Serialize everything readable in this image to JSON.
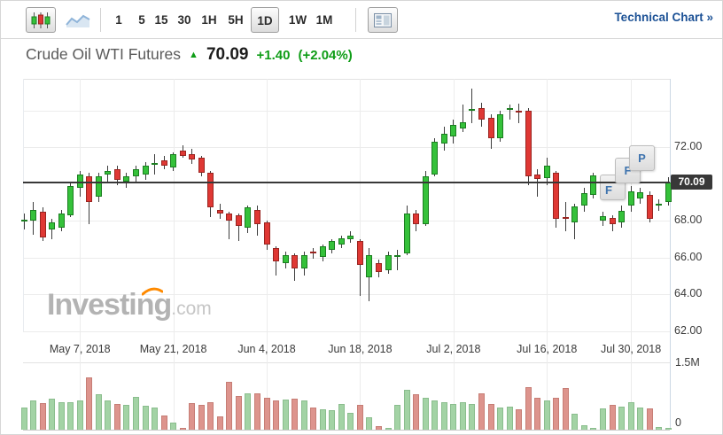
{
  "toolbar": {
    "chart_type_buttons": [
      {
        "name": "candlestick-chart",
        "selected": true
      },
      {
        "name": "line-chart",
        "selected": false
      }
    ],
    "timeframes": [
      "1",
      "5",
      "15",
      "30",
      "1H",
      "5H",
      "1D",
      "1W",
      "1M"
    ],
    "selected_timeframe": "1D",
    "technical_chart": {
      "label": "Technical Chart",
      "arrow": "»"
    }
  },
  "header": {
    "title": "Crude Oil WTI Futures",
    "up_arrow": "▲",
    "price": "70.09",
    "change": "+1.40",
    "change_pct": "(+2.04%)"
  },
  "watermark": {
    "text": "Investing",
    "suffix": ".com"
  },
  "axes": {
    "price_ticks": [
      "72.00",
      "68.00",
      "66.00",
      "64.00",
      "62.00"
    ],
    "price_tick_values": [
      72,
      68,
      66,
      64,
      62
    ],
    "current_price_label": "70.09",
    "date_ticks": [
      "May 7, 2018",
      "May 21, 2018",
      "Jun 4, 2018",
      "Jun 18, 2018",
      "Jul 2, 2018",
      "Jul 16, 2018",
      "Jul 30, 2018"
    ],
    "volume_ticks": [
      "1.5M",
      "0"
    ]
  },
  "event_flags": [
    {
      "label": "F"
    },
    {
      "label": "F"
    },
    {
      "label": "P"
    }
  ],
  "colors": {
    "candle_up": "#35c13a",
    "candle_up_border": "#1b7e20",
    "candle_down": "#df3834",
    "candle_down_border": "#992420",
    "volume_up": "#a3d3a5",
    "volume_down": "#dd948d",
    "price_line": "#383838",
    "link_blue": "#1d5296",
    "change_green": "#0f9d17",
    "flag_letter_blue": "#3f74ae",
    "watermark_orange": "#ff8a00"
  },
  "chart_data": {
    "type": "candlestick+volume",
    "title": "Crude Oil WTI Futures",
    "timeframe": "1D",
    "last_price": 70.09,
    "change": 1.4,
    "change_pct": 2.04,
    "price_axis_range": [
      61.9,
      75.7
    ],
    "price_gridlines": [
      74,
      72,
      68,
      66,
      64,
      62
    ],
    "volume_axis_range_m": [
      0,
      1.5
    ],
    "grid": true,
    "legend": "none",
    "x_tick_dates": [
      "May 7, 2018",
      "May 21, 2018",
      "Jun 4, 2018",
      "Jun 18, 2018",
      "Jul 2, 2018",
      "Jul 16, 2018",
      "Jul 30, 2018"
    ],
    "tick_indices": [
      7,
      17,
      27,
      37,
      47,
      57,
      66
    ],
    "candles_ohlcv": [
      [
        68.0,
        68.4,
        67.5,
        68.05,
        0.5
      ],
      [
        68.0,
        69.0,
        67.2,
        68.6,
        0.66
      ],
      [
        68.5,
        68.7,
        66.9,
        67.1,
        0.6
      ],
      [
        67.5,
        68.1,
        67.0,
        67.9,
        0.7
      ],
      [
        67.6,
        68.6,
        67.4,
        68.4,
        0.62
      ],
      [
        68.3,
        70.1,
        68.2,
        69.9,
        0.62
      ],
      [
        69.8,
        70.7,
        69.3,
        70.5,
        0.66
      ],
      [
        70.4,
        70.6,
        67.8,
        69.0,
        1.16
      ],
      [
        69.3,
        70.6,
        69.0,
        70.4,
        0.8
      ],
      [
        70.5,
        71.0,
        70.0,
        70.7,
        0.66
      ],
      [
        70.8,
        71.0,
        69.9,
        70.2,
        0.58
      ],
      [
        70.1,
        70.6,
        69.8,
        70.4,
        0.56
      ],
      [
        70.4,
        71.0,
        70.1,
        70.8,
        0.74
      ],
      [
        70.5,
        71.2,
        70.2,
        71.0,
        0.54
      ],
      [
        71.1,
        71.6,
        70.5,
        71.15,
        0.5
      ],
      [
        71.3,
        71.5,
        70.8,
        71.0,
        0.32
      ],
      [
        70.9,
        71.7,
        70.7,
        71.6,
        0.16
      ],
      [
        71.8,
        72.1,
        71.4,
        71.5,
        0.05
      ],
      [
        71.6,
        71.9,
        71.1,
        71.3,
        0.6
      ],
      [
        71.4,
        71.5,
        70.4,
        70.6,
        0.55
      ],
      [
        70.6,
        70.7,
        68.2,
        68.7,
        0.62
      ],
      [
        68.6,
        68.9,
        68.1,
        68.4,
        0.3
      ],
      [
        68.4,
        68.5,
        67.0,
        68.0,
        1.06
      ],
      [
        68.3,
        68.4,
        66.9,
        67.7,
        0.76
      ],
      [
        67.6,
        68.8,
        67.3,
        68.7,
        0.82
      ],
      [
        68.6,
        68.8,
        67.2,
        67.8,
        0.82
      ],
      [
        67.9,
        68.0,
        66.4,
        66.7,
        0.72
      ],
      [
        66.5,
        66.6,
        65.0,
        65.8,
        0.66
      ],
      [
        65.7,
        66.3,
        65.4,
        66.1,
        0.68
      ],
      [
        66.1,
        66.2,
        64.7,
        65.4,
        0.7
      ],
      [
        65.4,
        66.3,
        65.0,
        66.1,
        0.66
      ],
      [
        66.3,
        66.5,
        65.9,
        66.2,
        0.5
      ],
      [
        66.0,
        66.7,
        65.8,
        66.6,
        0.46
      ],
      [
        66.4,
        67.0,
        66.2,
        66.9,
        0.44
      ],
      [
        66.7,
        67.2,
        66.5,
        67.05,
        0.58
      ],
      [
        67.0,
        67.4,
        66.8,
        67.2,
        0.38
      ],
      [
        66.9,
        67.0,
        63.9,
        65.6,
        0.55
      ],
      [
        64.9,
        66.5,
        63.6,
        66.1,
        0.28
      ],
      [
        65.7,
        65.9,
        64.9,
        65.2,
        0.08
      ],
      [
        65.3,
        66.3,
        65.1,
        66.1,
        0.05
      ],
      [
        66.0,
        66.4,
        65.3,
        66.1,
        0.55
      ],
      [
        66.2,
        68.8,
        66.1,
        68.4,
        0.88
      ],
      [
        68.4,
        68.6,
        67.4,
        67.8,
        0.8
      ],
      [
        67.8,
        70.7,
        67.7,
        70.4,
        0.72
      ],
      [
        70.5,
        72.5,
        70.4,
        72.3,
        0.66
      ],
      [
        72.2,
        73.1,
        71.8,
        72.7,
        0.62
      ],
      [
        72.6,
        73.5,
        72.2,
        73.2,
        0.58
      ],
      [
        73.0,
        74.3,
        72.8,
        73.35,
        0.62
      ],
      [
        73.95,
        75.2,
        73.3,
        74.05,
        0.58
      ],
      [
        74.1,
        74.4,
        73.1,
        73.5,
        0.82
      ],
      [
        73.6,
        73.8,
        71.9,
        72.5,
        0.58
      ],
      [
        72.5,
        74.0,
        72.3,
        73.8,
        0.5
      ],
      [
        74.0,
        74.3,
        73.5,
        74.1,
        0.52
      ],
      [
        74.0,
        74.35,
        73.3,
        73.9,
        0.45
      ],
      [
        74.0,
        74.1,
        69.9,
        70.4,
        0.95
      ],
      [
        70.5,
        70.8,
        69.3,
        70.25,
        0.72
      ],
      [
        70.3,
        71.4,
        69.9,
        71.0,
        0.66
      ],
      [
        70.6,
        70.7,
        67.6,
        68.1,
        0.72
      ],
      [
        68.2,
        69.0,
        67.4,
        68.1,
        0.92
      ],
      [
        67.9,
        68.9,
        67.0,
        68.75,
        0.35
      ],
      [
        68.8,
        69.8,
        68.5,
        69.5,
        0.1
      ],
      [
        69.4,
        70.6,
        69.2,
        70.45,
        0.04
      ],
      [
        68.0,
        68.5,
        67.7,
        68.25,
        0.48
      ],
      [
        68.15,
        68.3,
        67.4,
        67.8,
        0.55
      ],
      [
        67.9,
        68.8,
        67.6,
        68.55,
        0.52
      ],
      [
        68.8,
        69.9,
        68.5,
        69.6,
        0.62
      ],
      [
        69.2,
        69.8,
        68.9,
        69.55,
        0.5
      ],
      [
        69.4,
        69.6,
        67.9,
        68.1,
        0.48
      ],
      [
        68.85,
        69.15,
        68.55,
        68.9,
        0.06
      ],
      [
        69.0,
        70.35,
        68.8,
        70.09,
        0.05
      ]
    ]
  }
}
